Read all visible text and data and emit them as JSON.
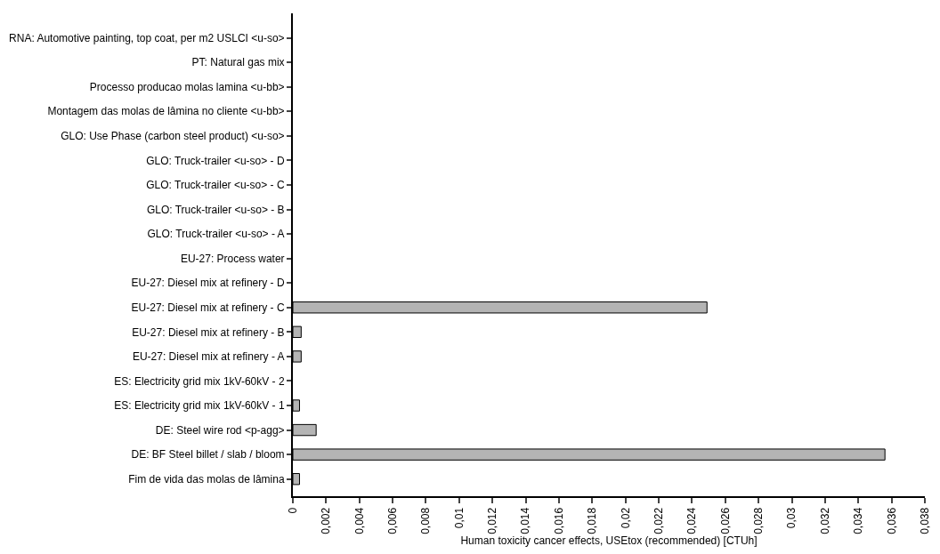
{
  "chart_data": {
    "type": "bar",
    "orientation": "horizontal",
    "xlabel": "Human toxicity cancer effects, USEtox (recommended) [CTUh]",
    "categories": [
      "RNA: Automotive painting, top coat, per m2 USLCI <u-so>",
      "PT: Natural gas mix",
      "Processo producao molas lamina <u-bb>",
      "Montagem das molas de lâmina no cliente <u-bb>",
      "GLO: Use Phase (carbon steel product) <u-so>",
      "GLO: Truck-trailer <u-so> - D",
      "GLO: Truck-trailer <u-so> - C",
      "GLO: Truck-trailer <u-so> - B",
      "GLO: Truck-trailer <u-so> - A",
      "EU-27: Process water",
      "EU-27: Diesel mix at refinery - D",
      "EU-27: Diesel mix at refinery - C",
      "EU-27: Diesel mix at refinery - B",
      "EU-27: Diesel mix at refinery - A",
      "ES: Electricity grid mix 1kV-60kV - 2",
      "ES: Electricity grid mix 1kV-60kV - 1",
      "DE: Steel wire rod <p-agg>",
      "DE: BF Steel billet / slab / bloom",
      "Fim de vida das molas de lâmina"
    ],
    "values": [
      0,
      0,
      0,
      0,
      0,
      0,
      0,
      0,
      0,
      0,
      0,
      0.0249,
      0.0005,
      0.0005,
      0,
      0.0004,
      0.0014,
      0.0356,
      0.0004
    ],
    "color": "#b4b4b4",
    "xlim": [
      0,
      0.038
    ],
    "xticks": [
      0,
      {
        "value": 0.002,
        "label": "0,002"
      },
      {
        "value": 0.004,
        "label": "0,004"
      },
      {
        "value": 0.006,
        "label": "0,006"
      },
      {
        "value": 0.008,
        "label": "0,008"
      },
      {
        "value": 0.01,
        "label": "0,01"
      },
      {
        "value": 0.012,
        "label": "0,012"
      },
      {
        "value": 0.014,
        "label": "0,014"
      },
      {
        "value": 0.016,
        "label": "0,016"
      },
      {
        "value": 0.018,
        "label": "0,018"
      },
      {
        "value": 0.02,
        "label": "0,02"
      },
      {
        "value": 0.022,
        "label": "0,022"
      },
      {
        "value": 0.024,
        "label": "0,024"
      },
      {
        "value": 0.026,
        "label": "0,026"
      },
      {
        "value": 0.028,
        "label": "0,028"
      },
      {
        "value": 0.03,
        "label": "0,03"
      },
      {
        "value": 0.032,
        "label": "0,032"
      },
      {
        "value": 0.034,
        "label": "0,034"
      },
      {
        "value": 0.036,
        "label": "0,036"
      },
      {
        "value": 0.038,
        "label": "0,038"
      }
    ]
  }
}
